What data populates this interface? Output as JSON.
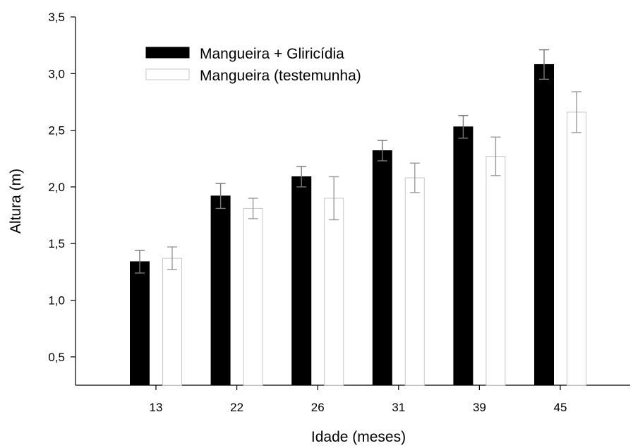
{
  "chart_data": {
    "type": "bar",
    "title": "",
    "xlabel": "Idade (meses)",
    "ylabel": "Altura (m)",
    "ylim": [
      0.25,
      3.5
    ],
    "yticks": [
      {
        "value": 0.5,
        "label": "0,5"
      },
      {
        "value": 1.0,
        "label": "1,0"
      },
      {
        "value": 1.5,
        "label": "1,5"
      },
      {
        "value": 2.0,
        "label": "2,0"
      },
      {
        "value": 2.5,
        "label": "2,5"
      },
      {
        "value": 3.0,
        "label": "3,0"
      },
      {
        "value": 3.5,
        "label": "3,5"
      }
    ],
    "categories": [
      "13",
      "22",
      "26",
      "31",
      "39",
      "45"
    ],
    "series": [
      {
        "name": "Mangueira + Gliricídia",
        "fill": "#000000",
        "stroke": "#000000",
        "error_color": "#777777",
        "values": [
          1.34,
          1.92,
          2.09,
          2.32,
          2.53,
          3.08
        ],
        "errors": [
          0.1,
          0.11,
          0.09,
          0.09,
          0.1,
          0.13
        ]
      },
      {
        "name": "Mangueira (testemunha)",
        "fill": "#ffffff",
        "stroke": "#c8c8c8",
        "error_color": "#9a9a9a",
        "values": [
          1.37,
          1.81,
          1.9,
          2.08,
          2.27,
          2.66
        ],
        "errors": [
          0.1,
          0.09,
          0.19,
          0.13,
          0.17,
          0.18
        ]
      }
    ],
    "legend_position": "top-left",
    "grid": false
  }
}
